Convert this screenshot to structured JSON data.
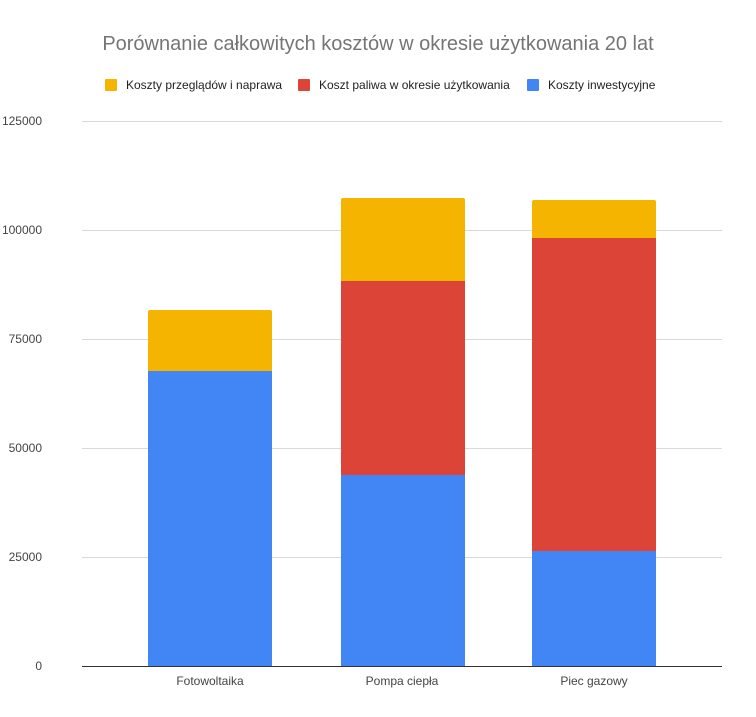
{
  "chart_data": {
    "type": "bar",
    "stacked": true,
    "title": "Porównanie całkowitych kosztów w okresie użytkowania 20 lat",
    "xlabel": "",
    "ylabel": "",
    "categories": [
      "Fotowoltaika",
      "Pompa ciepła",
      "Piec gazowy"
    ],
    "series": [
      {
        "name": "Koszty inwestycyjne",
        "color": "#4285f4",
        "values": [
          67700,
          43800,
          26400
        ]
      },
      {
        "name": "Koszt paliwa w okresie użytkowania",
        "color": "#db4437",
        "values": [
          0,
          44500,
          71800
        ]
      },
      {
        "name": "Koszty przeglądów i naprawa",
        "color": "#f4b400",
        "values": [
          14000,
          19000,
          8700
        ]
      }
    ],
    "ylim": [
      0,
      125000
    ],
    "yticks": [
      "0",
      "25000",
      "50000",
      "75000",
      "100000",
      "125000"
    ],
    "grid": true,
    "legend_position": "top",
    "legend_order": [
      "Koszty przeglądów i naprawa",
      "Koszt paliwa w okresie użytkowania",
      "Koszty inwestycyjne"
    ]
  },
  "title": "Porównanie całkowitych kosztów w okresie użytkowania 20 lat",
  "legend": [
    {
      "label": "Koszty przeglądów i naprawa",
      "color": "#f4b400"
    },
    {
      "label": "Koszt paliwa w okresie użytkowania",
      "color": "#db4437"
    },
    {
      "label": "Koszty inwestycyjne",
      "color": "#4285f4"
    }
  ],
  "axis": {
    "y": [
      "0",
      "25000",
      "50000",
      "75000",
      "100000",
      "125000"
    ],
    "x": [
      "Fotowoltaika",
      "Pompa ciepła",
      "Piec gazowy"
    ]
  }
}
